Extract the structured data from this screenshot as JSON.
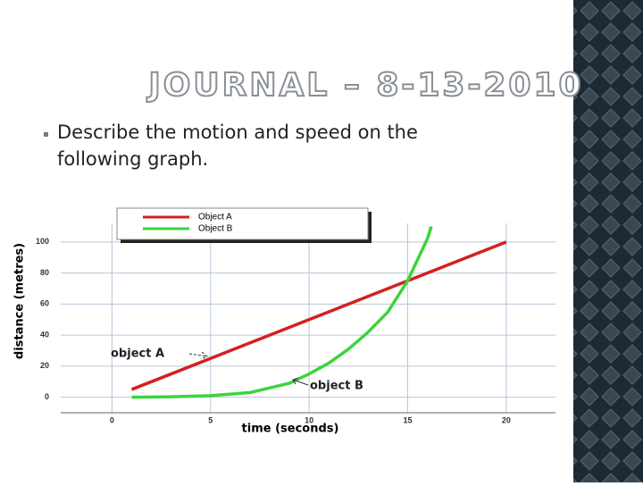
{
  "title": "JOURNAL – 8-13-2010",
  "bullet": "Describe the motion and speed on the following graph.",
  "chart_data": {
    "type": "line",
    "x_label": "time (seconds)",
    "y_label": "distance (metres)",
    "xlim": [
      -2.6,
      22.5
    ],
    "ylim": [
      -10,
      112
    ],
    "xticks": [
      0,
      5,
      10,
      15,
      20
    ],
    "yticks": [
      0,
      20,
      40,
      60,
      80,
      100
    ],
    "grid": true,
    "series": [
      {
        "name": "Object A",
        "color": "#d42020",
        "x": [
          1,
          20
        ],
        "values": [
          5,
          100
        ]
      },
      {
        "name": "Object B",
        "color": "#3cd43c",
        "x": [
          1,
          3,
          5,
          7,
          9,
          10,
          11,
          12,
          13,
          14,
          15,
          16,
          16.2
        ],
        "values": [
          0,
          0.3,
          1,
          3,
          9,
          15,
          22,
          31,
          42,
          55,
          75,
          102,
          110
        ]
      }
    ],
    "annotations": [
      "object A",
      "object B"
    ]
  }
}
